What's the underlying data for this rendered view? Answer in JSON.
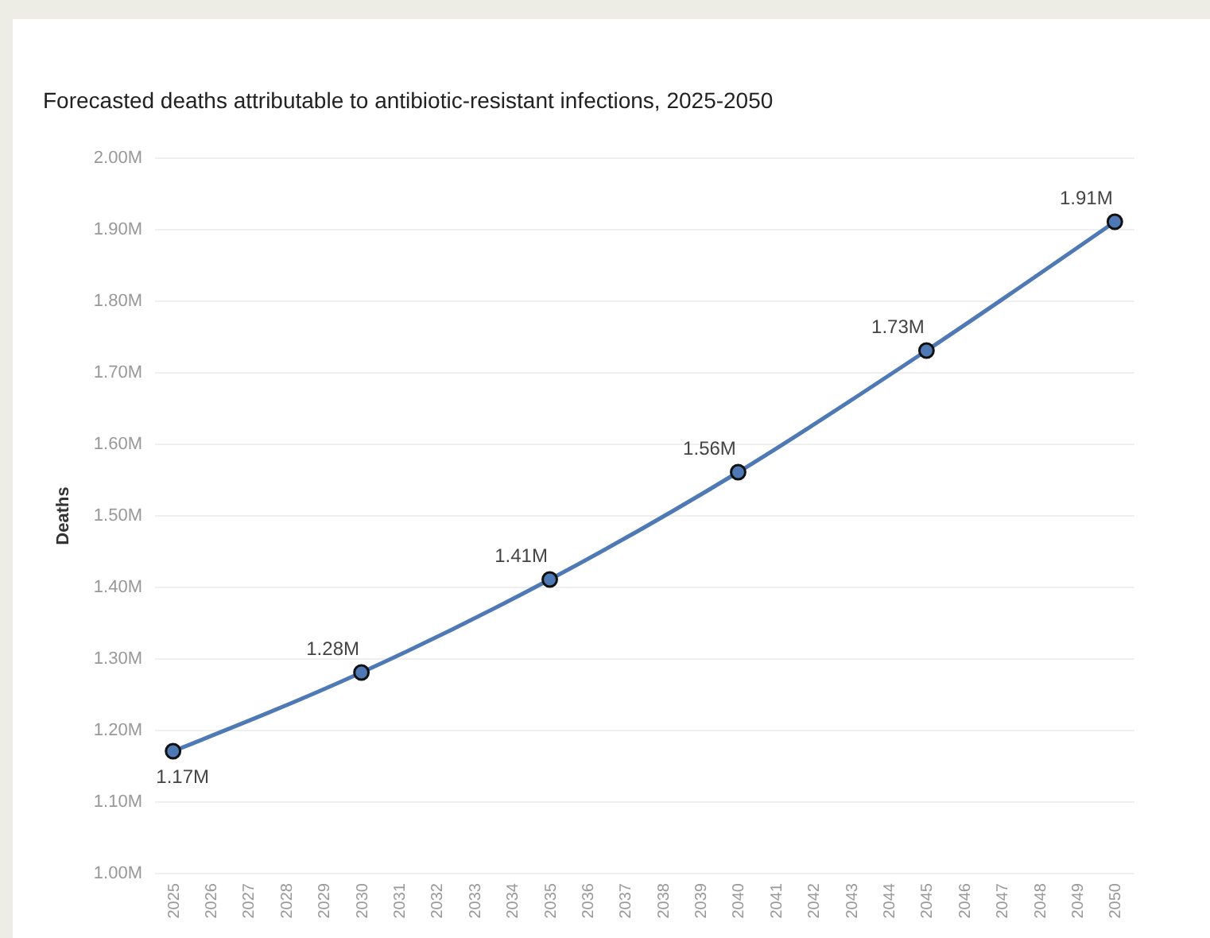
{
  "chart_data": {
    "type": "line",
    "title": "Forecasted deaths attributable to antibiotic-resistant infections, 2025-2050",
    "ylabel": "Deaths",
    "x": [
      2025,
      2030,
      2035,
      2040,
      2045,
      2050
    ],
    "series": [
      {
        "color": "#4e79b4",
        "values": [
          1.17,
          1.28,
          1.41,
          1.56,
          1.73,
          1.91
        ],
        "value_labels": [
          "1.17M",
          "1.28M",
          "1.41M",
          "1.56M",
          "1.73M",
          "1.91M"
        ]
      }
    ],
    "xlim": [
      2024.5,
      2050.5
    ],
    "xticks": [
      2025,
      2026,
      2027,
      2028,
      2029,
      2030,
      2031,
      2032,
      2033,
      2034,
      2035,
      2036,
      2037,
      2038,
      2039,
      2040,
      2041,
      2042,
      2043,
      2044,
      2045,
      2046,
      2047,
      2048,
      2049,
      2050
    ],
    "ylim": [
      1.0,
      2.0
    ],
    "yticks": [
      {
        "value": 1.0,
        "label": "1.00M"
      },
      {
        "value": 1.1,
        "label": "1.10M"
      },
      {
        "value": 1.2,
        "label": "1.20M"
      },
      {
        "value": 1.3,
        "label": "1.30M"
      },
      {
        "value": 1.4,
        "label": "1.40M"
      },
      {
        "value": 1.5,
        "label": "1.50M"
      },
      {
        "value": 1.6,
        "label": "1.60M"
      },
      {
        "value": 1.7,
        "label": "1.70M"
      },
      {
        "value": 1.8,
        "label": "1.80M"
      },
      {
        "value": 1.9,
        "label": "1.90M"
      },
      {
        "value": 2.0,
        "label": "2.00M"
      }
    ],
    "grid": "y",
    "marker": "circle",
    "line_style": "solid"
  }
}
